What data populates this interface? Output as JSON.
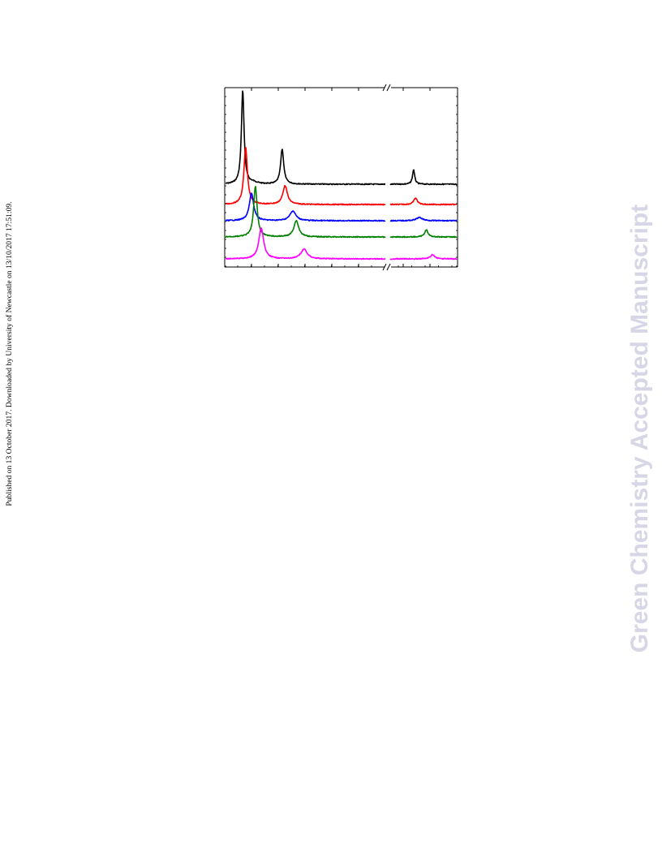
{
  "side_note": "Published on 13 October 2017. Downloaded by University of Newcastle on 13/10/2017 17:51:09.",
  "watermark": "Green Chemistry Accepted Manuscript",
  "figure": {
    "frame_color": "#000000",
    "axis_break_symbol": "//",
    "spectra": [
      {
        "color": "#000000",
        "peaks": [
          {
            "segment": 0,
            "pos": 0.37,
            "height": 115,
            "width": 2.0
          },
          {
            "segment": 0,
            "pos": 1.18,
            "height": 43,
            "width": 2.3
          },
          {
            "segment": 0,
            "pos": 0.59,
            "height": 2,
            "width": 6
          },
          {
            "segment": 1,
            "pos": 0.48,
            "height": 18,
            "width": 1.6
          }
        ]
      },
      {
        "color": "#ff0000",
        "peaks": [
          {
            "segment": 0,
            "pos": 0.43,
            "height": 70,
            "width": 2.6
          },
          {
            "segment": 0,
            "pos": 1.24,
            "height": 23,
            "width": 3.4
          },
          {
            "segment": 1,
            "pos": 0.52,
            "height": 8,
            "width": 2.6
          }
        ]
      },
      {
        "color": "#0000ff",
        "peaks": [
          {
            "segment": 0,
            "pos": 0.55,
            "height": 34,
            "width": 3.2
          },
          {
            "segment": 0,
            "pos": 1.4,
            "height": 12,
            "width": 4.4
          },
          {
            "segment": 1,
            "pos": 0.6,
            "height": 4,
            "width": 4.5
          }
        ]
      },
      {
        "color": "#008000",
        "peaks": [
          {
            "segment": 0,
            "pos": 0.63,
            "height": 62,
            "width": 2.6
          },
          {
            "segment": 0,
            "pos": 1.47,
            "height": 20,
            "width": 3.6
          },
          {
            "segment": 1,
            "pos": 0.74,
            "height": 9,
            "width": 2.4
          }
        ]
      },
      {
        "color": "#ff00ff",
        "peaks": [
          {
            "segment": 0,
            "pos": 0.75,
            "height": 38,
            "width": 3.6
          },
          {
            "segment": 0,
            "pos": 1.63,
            "height": 12,
            "width": 4.6
          },
          {
            "segment": 1,
            "pos": 0.87,
            "height": 5,
            "width": 3.2
          }
        ]
      }
    ]
  }
}
